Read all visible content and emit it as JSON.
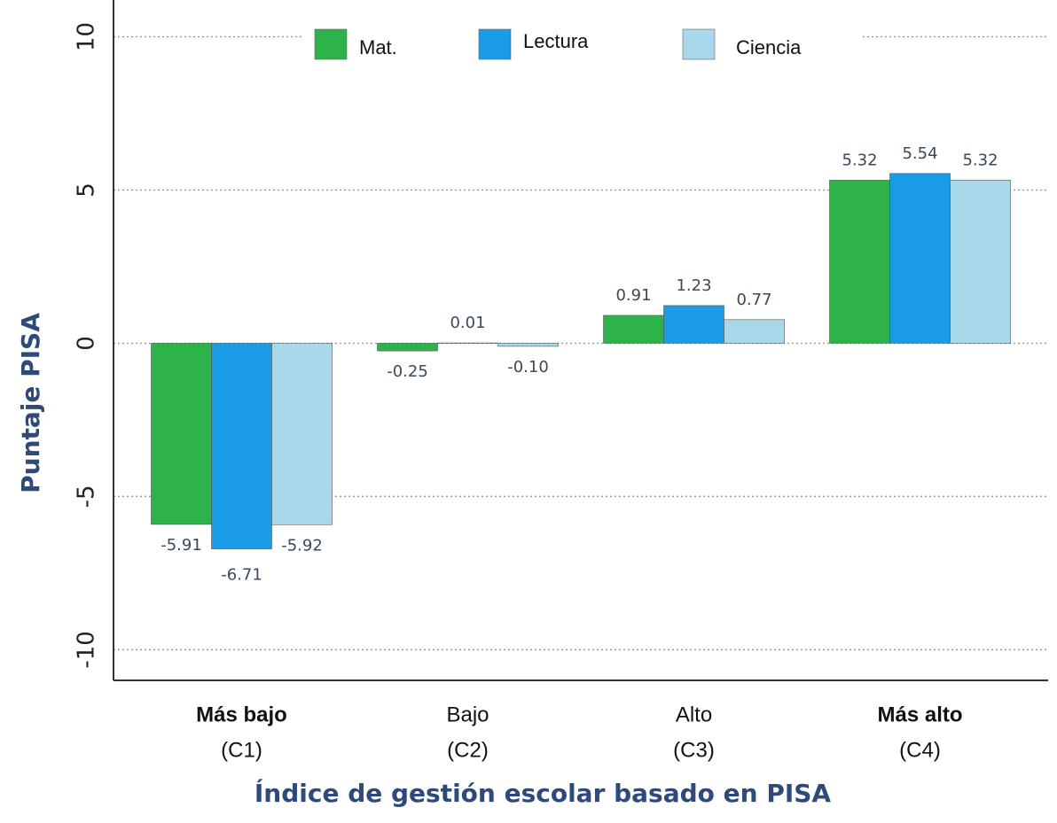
{
  "chart_data": {
    "type": "bar",
    "y_label": "Puntaje PISA",
    "x_label": "Índice de gestión escolar basado en PISA",
    "categories": [
      "Más bajo",
      "Bajo",
      "Alto",
      "Más alto"
    ],
    "category_codes": [
      "(C1)",
      "(C2)",
      "(C3)",
      "(C4)"
    ],
    "series": [
      {
        "name": "Mat.",
        "color": "#2db34a",
        "values": [
          -5.91,
          -0.25,
          0.91,
          5.32
        ]
      },
      {
        "name": "Lectura",
        "color": "#1a9be6",
        "values": [
          -6.71,
          0.01,
          1.23,
          5.54
        ]
      },
      {
        "name": "Ciencia",
        "color": "#a8d8ea",
        "values": [
          -5.92,
          -0.1,
          0.77,
          5.32
        ],
        "value_labels": [
          "-5.92",
          "-0.10",
          "0.77",
          "5.32"
        ]
      }
    ],
    "ylim": [
      -11,
      11.2
    ],
    "yticks": [
      -10,
      -5,
      0,
      5,
      10
    ],
    "grid": true,
    "legend": "top"
  }
}
